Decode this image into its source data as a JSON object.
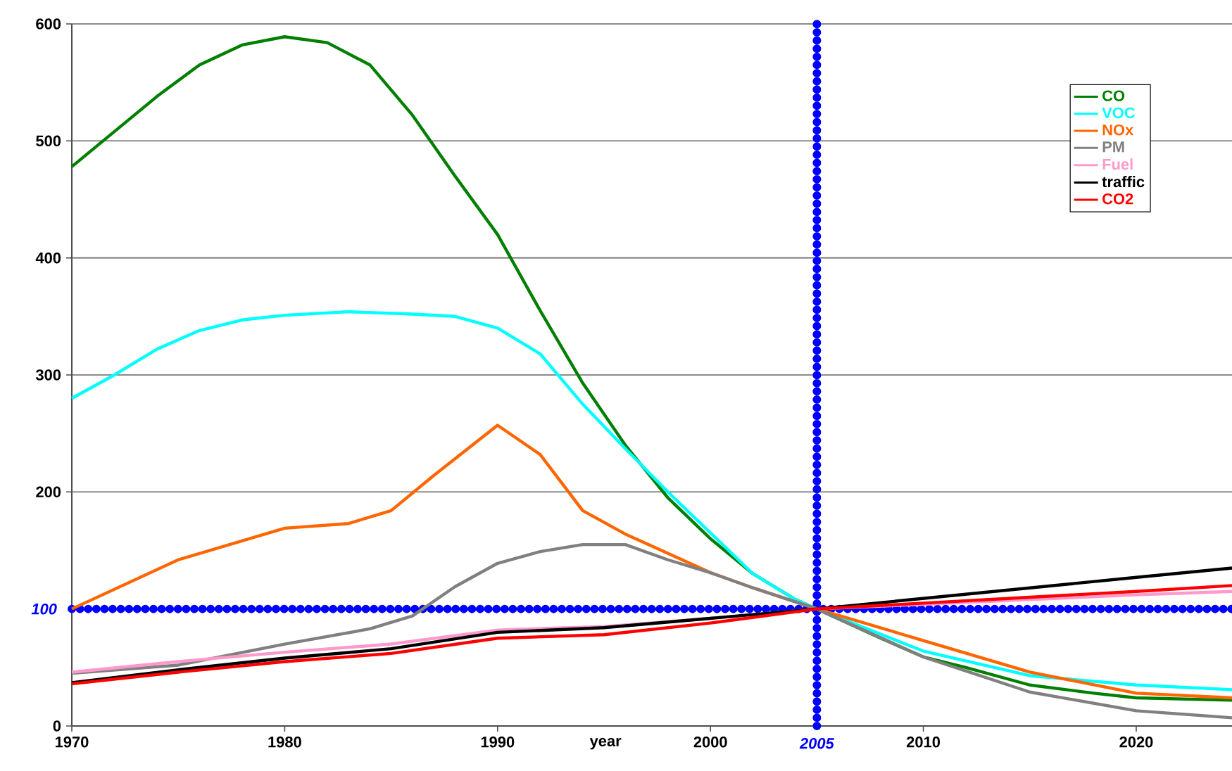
{
  "chart_data": {
    "type": "line",
    "xlabel": "year",
    "xlim": [
      1970,
      2024.5
    ],
    "xticks": [
      1970,
      1980,
      1990,
      2000,
      2010,
      2020
    ],
    "ylim": [
      0,
      600
    ],
    "yticks": [
      0,
      200,
      300,
      400,
      500,
      600
    ],
    "grid": "y",
    "legend": "top right",
    "marker": "none",
    "line_style": "solid",
    "series": [
      {
        "name": "CO",
        "color": "#007f00",
        "x": [
          1970,
          1972,
          1974,
          1976,
          1978,
          1980,
          1982,
          1984,
          1986,
          1988,
          1990,
          1992,
          1994,
          1996,
          1998,
          2000,
          2002,
          2004,
          2005,
          2008,
          2010,
          2012,
          2015,
          2018,
          2020,
          2024.5
        ],
        "values": [
          478,
          508,
          538,
          565,
          582,
          589,
          584,
          565,
          522,
          470,
          420,
          355,
          293,
          240,
          195,
          160,
          130,
          108,
          100,
          75,
          59,
          50,
          35,
          28,
          24,
          22
        ]
      },
      {
        "name": "VOC",
        "color": "#00ffff",
        "x": [
          1970,
          1972,
          1974,
          1976,
          1978,
          1980,
          1983,
          1986,
          1988,
          1990,
          1992,
          1994,
          1996,
          1998,
          2000,
          2002,
          2004,
          2005,
          2010,
          2015,
          2020,
          2024.5
        ],
        "values": [
          280,
          300,
          322,
          338,
          347,
          351,
          354,
          352,
          350,
          340,
          318,
          275,
          237,
          200,
          165,
          130,
          108,
          100,
          64,
          43,
          35,
          31
        ]
      },
      {
        "name": "NOx",
        "color": "#ff6600",
        "x": [
          1970,
          1975,
          1980,
          1983,
          1985,
          1987,
          1990,
          1992,
          1994,
          1996,
          2000,
          2002,
          2005,
          2010,
          2015,
          2020,
          2024.5
        ],
        "values": [
          100,
          142,
          169,
          173,
          184,
          214,
          257,
          232,
          184,
          164,
          131,
          118,
          100,
          73,
          46,
          28,
          24
        ]
      },
      {
        "name": "PM",
        "color": "#808080",
        "x": [
          1970,
          1975,
          1980,
          1984,
          1986,
          1988,
          1990,
          1992,
          1994,
          1996,
          1998,
          2000,
          2002,
          2005,
          2010,
          2015,
          2020,
          2024.5
        ],
        "values": [
          45,
          52,
          70,
          83,
          94,
          119,
          139,
          149,
          155,
          155,
          142,
          131,
          118,
          100,
          59,
          29,
          13,
          7
        ]
      },
      {
        "name": "Fuel",
        "color": "#ff99cc",
        "x": [
          1970,
          1975,
          1980,
          1985,
          1990,
          1995,
          2000,
          2005,
          2010,
          2015,
          2020,
          2024.5
        ],
        "values": [
          46,
          55,
          63,
          70,
          82,
          85,
          92,
          100,
          104,
          108,
          112,
          115
        ]
      },
      {
        "name": "traffic",
        "color": "#000000",
        "x": [
          1970,
          1975,
          1980,
          1985,
          1990,
          1995,
          2000,
          2005,
          2010,
          2015,
          2020,
          2024.5
        ],
        "values": [
          37,
          48,
          58,
          66,
          80,
          84,
          92,
          100,
          109,
          118,
          127,
          135
        ]
      },
      {
        "name": "CO2",
        "color": "#ff0000",
        "x": [
          1970,
          1975,
          1980,
          1985,
          1990,
          1995,
          2000,
          2005,
          2010,
          2015,
          2020,
          2024.5
        ],
        "values": [
          36,
          46,
          55,
          62,
          75,
          78,
          88,
          100,
          105,
          110,
          115,
          120
        ]
      }
    ],
    "ref_lines": [
      {
        "axis": "y",
        "value": 100,
        "label": "100",
        "color": "#0000ff",
        "line_style": "dotted"
      },
      {
        "axis": "x",
        "value": 2005,
        "label": "2005",
        "color": "#0000ff",
        "line_style": "dotted"
      }
    ]
  }
}
